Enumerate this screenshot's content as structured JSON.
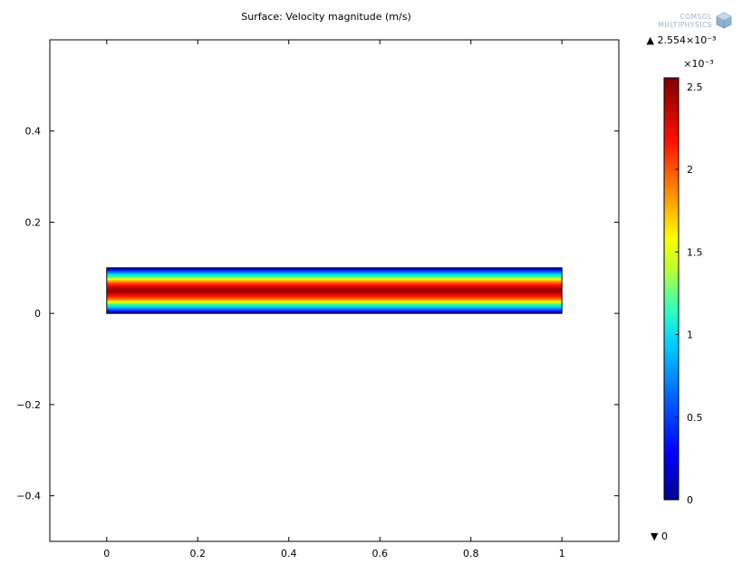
{
  "logo": {
    "line1": "COMSOL",
    "line2": "MULTIPHYSICS"
  },
  "chart_data": {
    "type": "heatmap",
    "title": "Surface: Velocity magnitude (m/s)",
    "xlabel": "",
    "ylabel": "",
    "xlim": [
      -0.125,
      1.125
    ],
    "ylim": [
      -0.5,
      0.6
    ],
    "xticks": [
      "0",
      "0.2",
      "0.4",
      "0.6",
      "0.8",
      "1"
    ],
    "xtick_values": [
      0,
      0.2,
      0.4,
      0.6,
      0.8,
      1
    ],
    "yticks": [
      "0.4",
      "0.2",
      "0",
      "−0.2",
      "−0.4"
    ],
    "ytick_values": [
      0.4,
      0.2,
      0,
      -0.2,
      -0.4
    ],
    "domain": {
      "x": [
        0,
        1
      ],
      "y": [
        0,
        0.1
      ]
    },
    "field": "parabolic velocity profile across channel height, max at y = 0.05",
    "colorbar": {
      "colormap": "rainbow (dark blue to dark red)",
      "min": 0,
      "max": 0.002554,
      "exponent_label": "×10⁻³",
      "max_label": "▲ 2.554×10⁻³",
      "min_label": "▼ 0",
      "tick_values": [
        0,
        0.5,
        1,
        1.5,
        2,
        2.5
      ],
      "tick_labels": [
        "0",
        "0.5",
        "1",
        "1.5",
        "2",
        "2.5"
      ]
    }
  }
}
